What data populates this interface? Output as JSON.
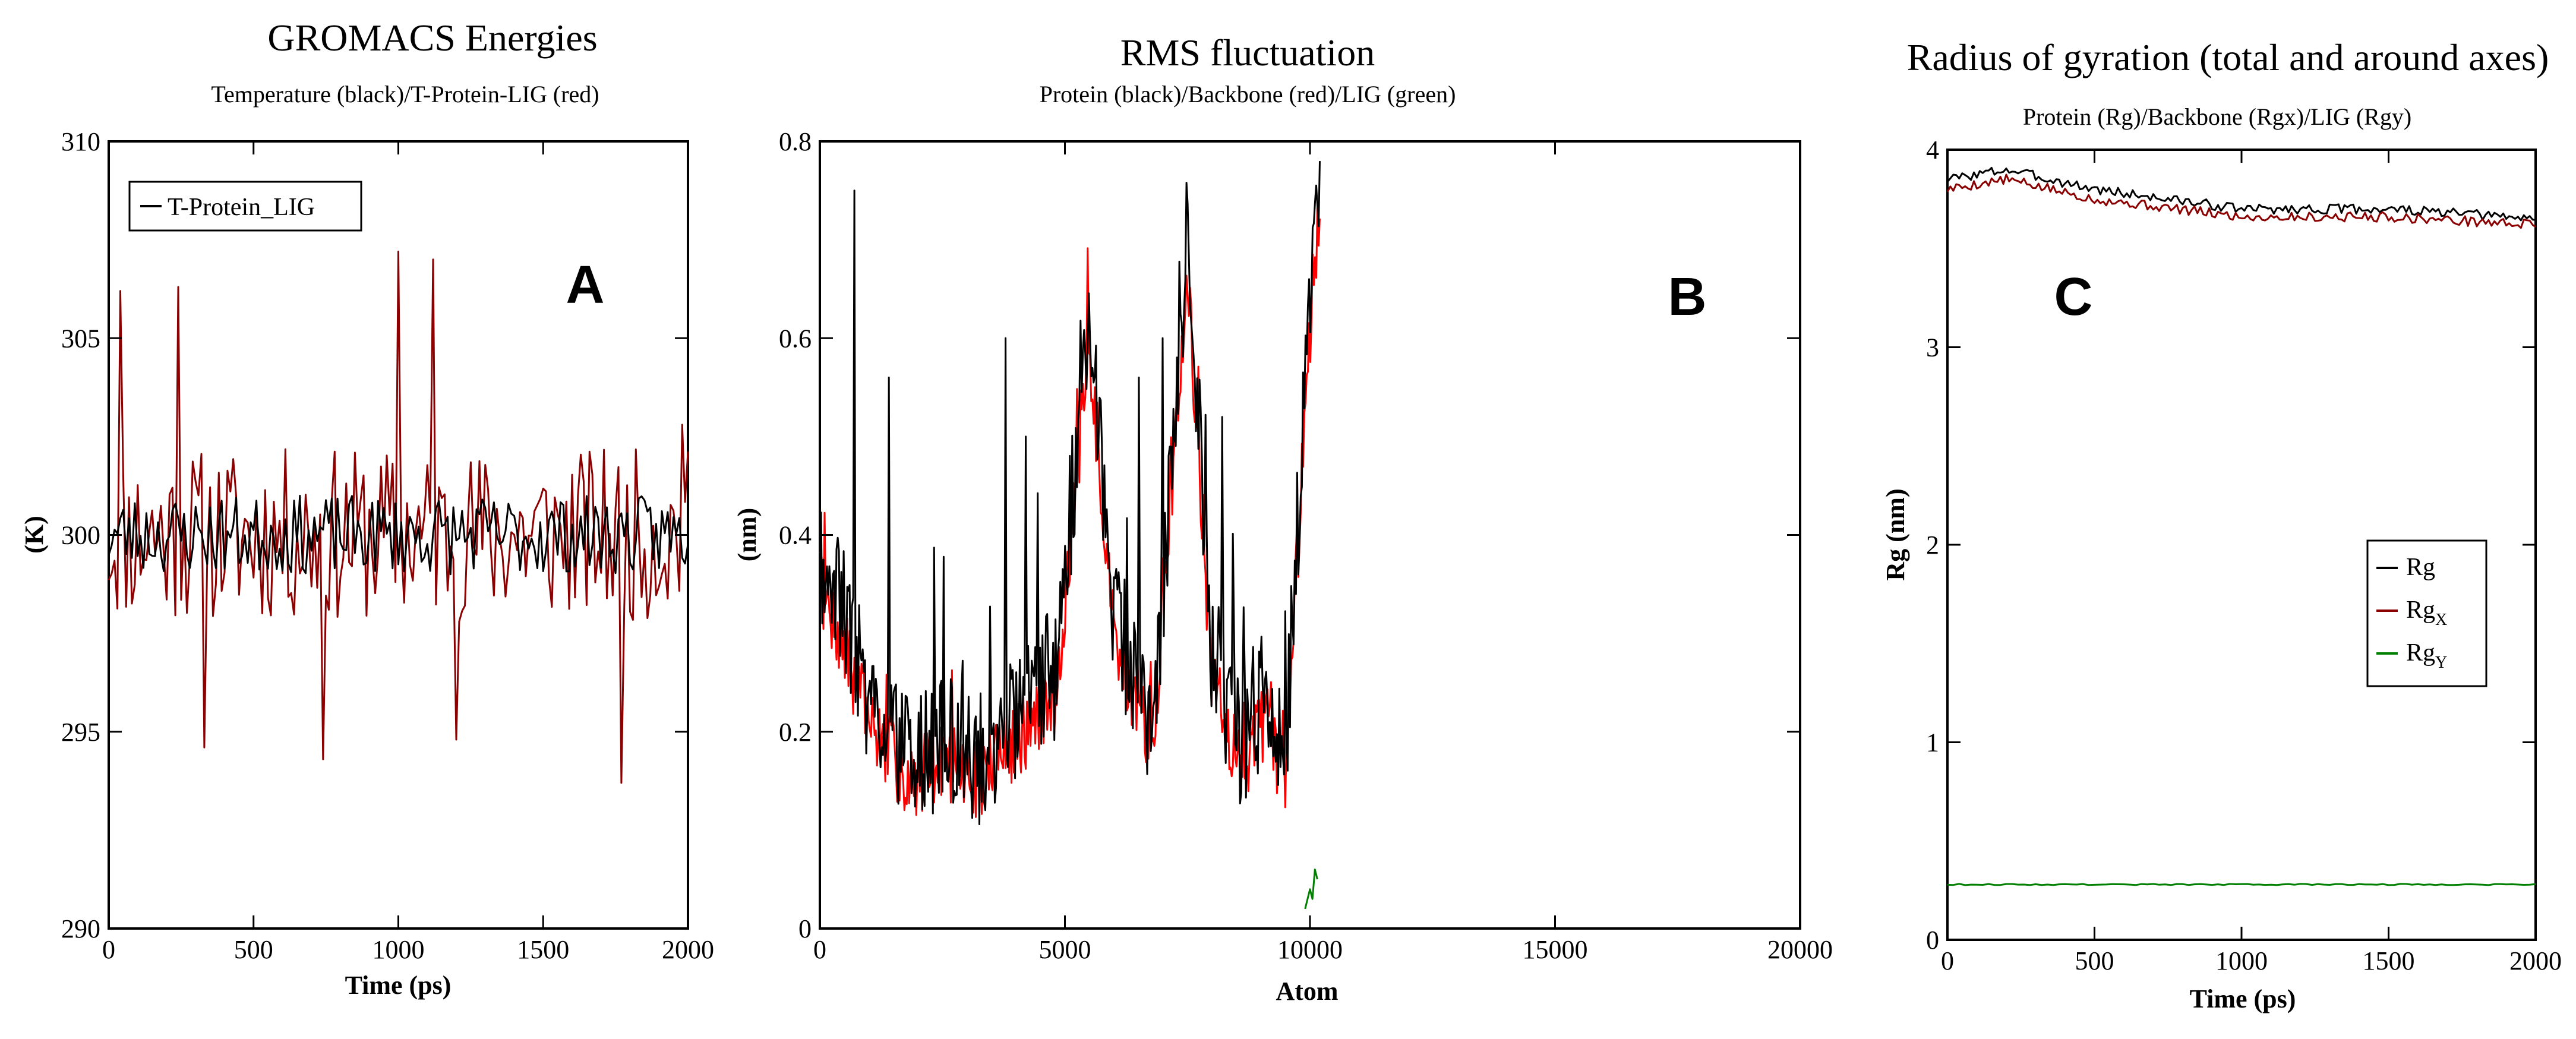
{
  "chart_data": [
    {
      "type": "line",
      "panel_letter": "A",
      "title": "GROMACS Energies",
      "subtitle": "Temperature (black)/T-Protein-LIG (red)",
      "xlabel": "Time (ps)",
      "ylabel": "(K)",
      "xlim": [
        0,
        2000
      ],
      "ylim": [
        290,
        310
      ],
      "xticks": [
        0,
        500,
        1000,
        1500,
        2000
      ],
      "yticks": [
        290,
        295,
        300,
        305,
        310
      ],
      "legend": {
        "placement": "top-left",
        "entries": [
          {
            "label": "T-Protein_LIG",
            "color": "#000000"
          }
        ]
      },
      "series": [
        {
          "name": "T-Protein_LIG",
          "color": "#8b0000",
          "kind": "noise",
          "x_start": 0,
          "x_end": 2000,
          "n": 200,
          "mean": 300,
          "amplitude": 2.2,
          "seed": 11,
          "spikes": [
            [
              40,
              306.2
            ],
            [
              240,
              306.3
            ],
            [
              330,
              294.6
            ],
            [
              740,
              294.3
            ],
            [
              1000,
              307.2
            ],
            [
              1120,
              307.0
            ],
            [
              1200,
              294.8
            ],
            [
              1770,
              293.7
            ],
            [
              1980,
              302.8
            ]
          ]
        },
        {
          "name": "Temperature",
          "color": "#000000",
          "kind": "noise",
          "x_start": 0,
          "x_end": 2000,
          "n": 200,
          "mean": 300,
          "amplitude": 1.0,
          "seed": 23
        }
      ]
    },
    {
      "type": "line",
      "panel_letter": "B",
      "title": "RMS fluctuation",
      "subtitle": "Protein (black)/Backbone (red)/LIG (green)",
      "xlabel": "Atom",
      "ylabel": "(nm)",
      "xlim": [
        0,
        20000
      ],
      "ylim": [
        0,
        0.8
      ],
      "xticks": [
        0,
        5000,
        10000,
        15000,
        20000
      ],
      "yticks": [
        0,
        0.2,
        0.4,
        0.6,
        0.8
      ],
      "series": [
        {
          "name": "Backbone",
          "color": "#ff0000",
          "kind": "profile",
          "offset": -0.01,
          "amplitude": 0.04,
          "n": 420,
          "seed": 7,
          "profile": [
            [
              0,
              0.36
            ],
            [
              600,
              0.28
            ],
            [
              1000,
              0.22
            ],
            [
              1800,
              0.16
            ],
            [
              2600,
              0.18
            ],
            [
              3200,
              0.16
            ],
            [
              4000,
              0.2
            ],
            [
              4800,
              0.24
            ],
            [
              5500,
              0.6
            ],
            [
              6000,
              0.3
            ],
            [
              6800,
              0.2
            ],
            [
              7500,
              0.68
            ],
            [
              8000,
              0.26
            ],
            [
              8600,
              0.17
            ],
            [
              9000,
              0.22
            ],
            [
              9500,
              0.17
            ],
            [
              10000,
              0.62
            ],
            [
              10200,
              0.75
            ]
          ]
        },
        {
          "name": "Protein",
          "color": "#000000",
          "kind": "profile",
          "offset": 0.0,
          "amplitude": 0.07,
          "n": 420,
          "seed": 19,
          "profile": [
            [
              0,
              0.38
            ],
            [
              600,
              0.3
            ],
            [
              1000,
              0.24
            ],
            [
              1800,
              0.17
            ],
            [
              2600,
              0.19
            ],
            [
              3200,
              0.17
            ],
            [
              4000,
              0.22
            ],
            [
              4800,
              0.26
            ],
            [
              5500,
              0.62
            ],
            [
              6000,
              0.32
            ],
            [
              6800,
              0.21
            ],
            [
              7500,
              0.7
            ],
            [
              8000,
              0.28
            ],
            [
              8600,
              0.18
            ],
            [
              9000,
              0.23
            ],
            [
              9500,
              0.18
            ],
            [
              10000,
              0.64
            ],
            [
              10200,
              0.78
            ]
          ],
          "spikes": [
            [
              700,
              0.75
            ],
            [
              1400,
              0.56
            ],
            [
              3800,
              0.6
            ],
            [
              4200,
              0.5
            ],
            [
              6500,
              0.56
            ],
            [
              7000,
              0.6
            ],
            [
              8200,
              0.52
            ],
            [
              10200,
              0.78
            ]
          ]
        },
        {
          "name": "LIG",
          "color": "#008000",
          "kind": "points",
          "x": [
            9900,
            10000,
            10050,
            10100,
            10150
          ],
          "y": [
            0.02,
            0.04,
            0.03,
            0.06,
            0.05
          ]
        }
      ]
    },
    {
      "type": "line",
      "panel_letter": "C",
      "title": "Radius of gyration (total and around axes)",
      "subtitle": "Protein (Rg)/Backbone (Rgx)/LIG (Rgy)",
      "xlabel": "Time (ps)",
      "ylabel": "Rg (nm)",
      "xlim": [
        0,
        2000
      ],
      "ylim": [
        0,
        4
      ],
      "xticks": [
        0,
        500,
        1000,
        1500,
        2000
      ],
      "yticks": [
        0,
        1,
        2,
        3,
        4
      ],
      "legend": {
        "placement": "right",
        "entries": [
          {
            "label": "Rg",
            "sub": "",
            "color": "#000000"
          },
          {
            "label": "Rg",
            "sub": "X",
            "color": "#8b0000"
          },
          {
            "label": "Rg",
            "sub": "Y",
            "color": "#008000"
          }
        ]
      },
      "series": [
        {
          "name": "Rg",
          "color": "#000000",
          "kind": "trend",
          "x": [
            0,
            200,
            500,
            1000,
            1500,
            2000
          ],
          "y": [
            3.85,
            3.9,
            3.8,
            3.7,
            3.7,
            3.65
          ],
          "amplitude": 0.025,
          "n": 200,
          "seed": 3
        },
        {
          "name": "RgX",
          "color": "#8b0000",
          "kind": "trend",
          "x": [
            0,
            200,
            500,
            1000,
            1500,
            2000
          ],
          "y": [
            3.8,
            3.85,
            3.75,
            3.66,
            3.66,
            3.62
          ],
          "amplitude": 0.025,
          "n": 200,
          "seed": 5
        },
        {
          "name": "RgY",
          "color": "#008000",
          "kind": "trend",
          "x": [
            0,
            2000
          ],
          "y": [
            0.28,
            0.28
          ],
          "amplitude": 0.003,
          "n": 100,
          "seed": 9
        }
      ]
    }
  ]
}
